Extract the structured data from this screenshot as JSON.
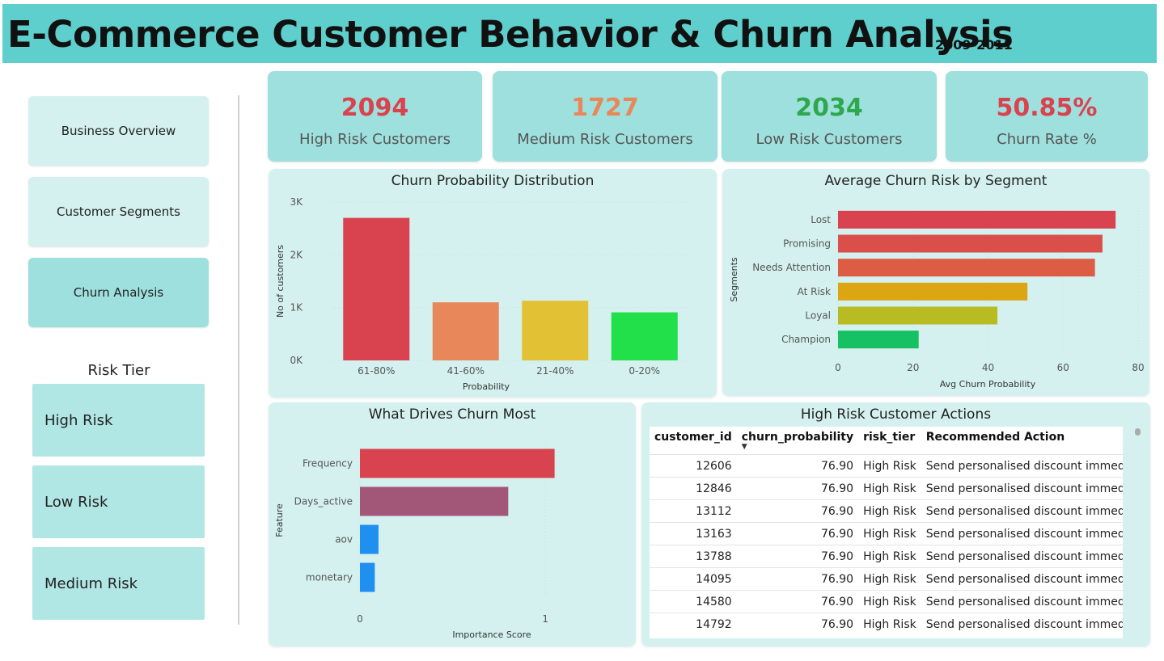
{
  "header": {
    "title": "E-Commerce Customer Behavior & Churn Analysis",
    "years": "2009-2011"
  },
  "nav": [
    {
      "label": "Business Overview",
      "active": false
    },
    {
      "label": "Customer Segments",
      "active": false
    },
    {
      "label": "Churn Analysis",
      "active": true
    }
  ],
  "risk_filter": {
    "title": "Risk Tier",
    "items": [
      "High Risk",
      "Low Risk",
      "Medium Risk"
    ]
  },
  "kpis": [
    {
      "value": "2094",
      "label": "High Risk Customers",
      "color": "#d9434f"
    },
    {
      "value": "1727",
      "label": "Medium Risk Customers",
      "color": "#e8885a"
    },
    {
      "value": "2034",
      "label": "Low Risk Customers",
      "color": "#2ea84f"
    },
    {
      "value": "50.85%",
      "label": "Churn Rate %",
      "color": "#d9434f"
    }
  ],
  "chart_data": [
    {
      "type": "bar",
      "title": "Churn Probability Distribution",
      "xlabel": "Probability",
      "ylabel": "No of customers",
      "categories": [
        "61-80%",
        "41-60%",
        "21-40%",
        "0-20%"
      ],
      "values": [
        2700,
        1100,
        1130,
        910
      ],
      "colors": [
        "#d9434f",
        "#e8885a",
        "#e2c234",
        "#22e04a"
      ],
      "ylim": [
        0,
        3000
      ],
      "yticks": [
        0,
        1000,
        2000,
        3000
      ],
      "ytick_labels": [
        "0K",
        "1K",
        "2K",
        "3K"
      ],
      "grid": true
    },
    {
      "type": "bar",
      "orientation": "horizontal",
      "title": "Average Churn Risk by Segment",
      "xlabel": "Avg Churn Probability",
      "ylabel": "Segments",
      "categories": [
        "Lost",
        "Promising",
        "Needs Attention",
        "At Risk",
        "Loyal",
        "Champion"
      ],
      "values": [
        74,
        70.5,
        68.5,
        50.5,
        42.5,
        21.5
      ],
      "colors": [
        "#d9434f",
        "#db4f4a",
        "#dd5d44",
        "#dba612",
        "#b9bb22",
        "#16c163"
      ],
      "xlim": [
        0,
        80
      ],
      "xticks": [
        0,
        20,
        40,
        60,
        80
      ],
      "grid": true
    },
    {
      "type": "bar",
      "orientation": "horizontal",
      "title": "What Drives Churn Most",
      "xlabel": "Importance Score",
      "ylabel": "Feature",
      "categories": [
        "Frequency",
        "Days_active",
        "aov",
        "monetary"
      ],
      "values": [
        1.05,
        0.8,
        0.1,
        0.08
      ],
      "colors": [
        "#d9434f",
        "#a25779",
        "#1f8ff0",
        "#1f8ff0"
      ],
      "xlim": [
        0,
        1.2
      ],
      "xticks": [
        0,
        1
      ],
      "grid": true
    }
  ],
  "table": {
    "title": "High Risk Customer Actions",
    "columns": [
      "customer_id",
      "churn_probability",
      "risk_tier",
      "Recommended Action"
    ],
    "rows": [
      [
        "12606",
        "76.90",
        "High Risk",
        "Send personalised discount immediately"
      ],
      [
        "12846",
        "76.90",
        "High Risk",
        "Send personalised discount immediately"
      ],
      [
        "13112",
        "76.90",
        "High Risk",
        "Send personalised discount immediately"
      ],
      [
        "13163",
        "76.90",
        "High Risk",
        "Send personalised discount immediately"
      ],
      [
        "13788",
        "76.90",
        "High Risk",
        "Send personalised discount immediately"
      ],
      [
        "14095",
        "76.90",
        "High Risk",
        "Send personalised discount immediately"
      ],
      [
        "14580",
        "76.90",
        "High Risk",
        "Send personalised discount immediately"
      ],
      [
        "14792",
        "76.90",
        "High Risk",
        "Send personalised discount immediately"
      ]
    ]
  }
}
